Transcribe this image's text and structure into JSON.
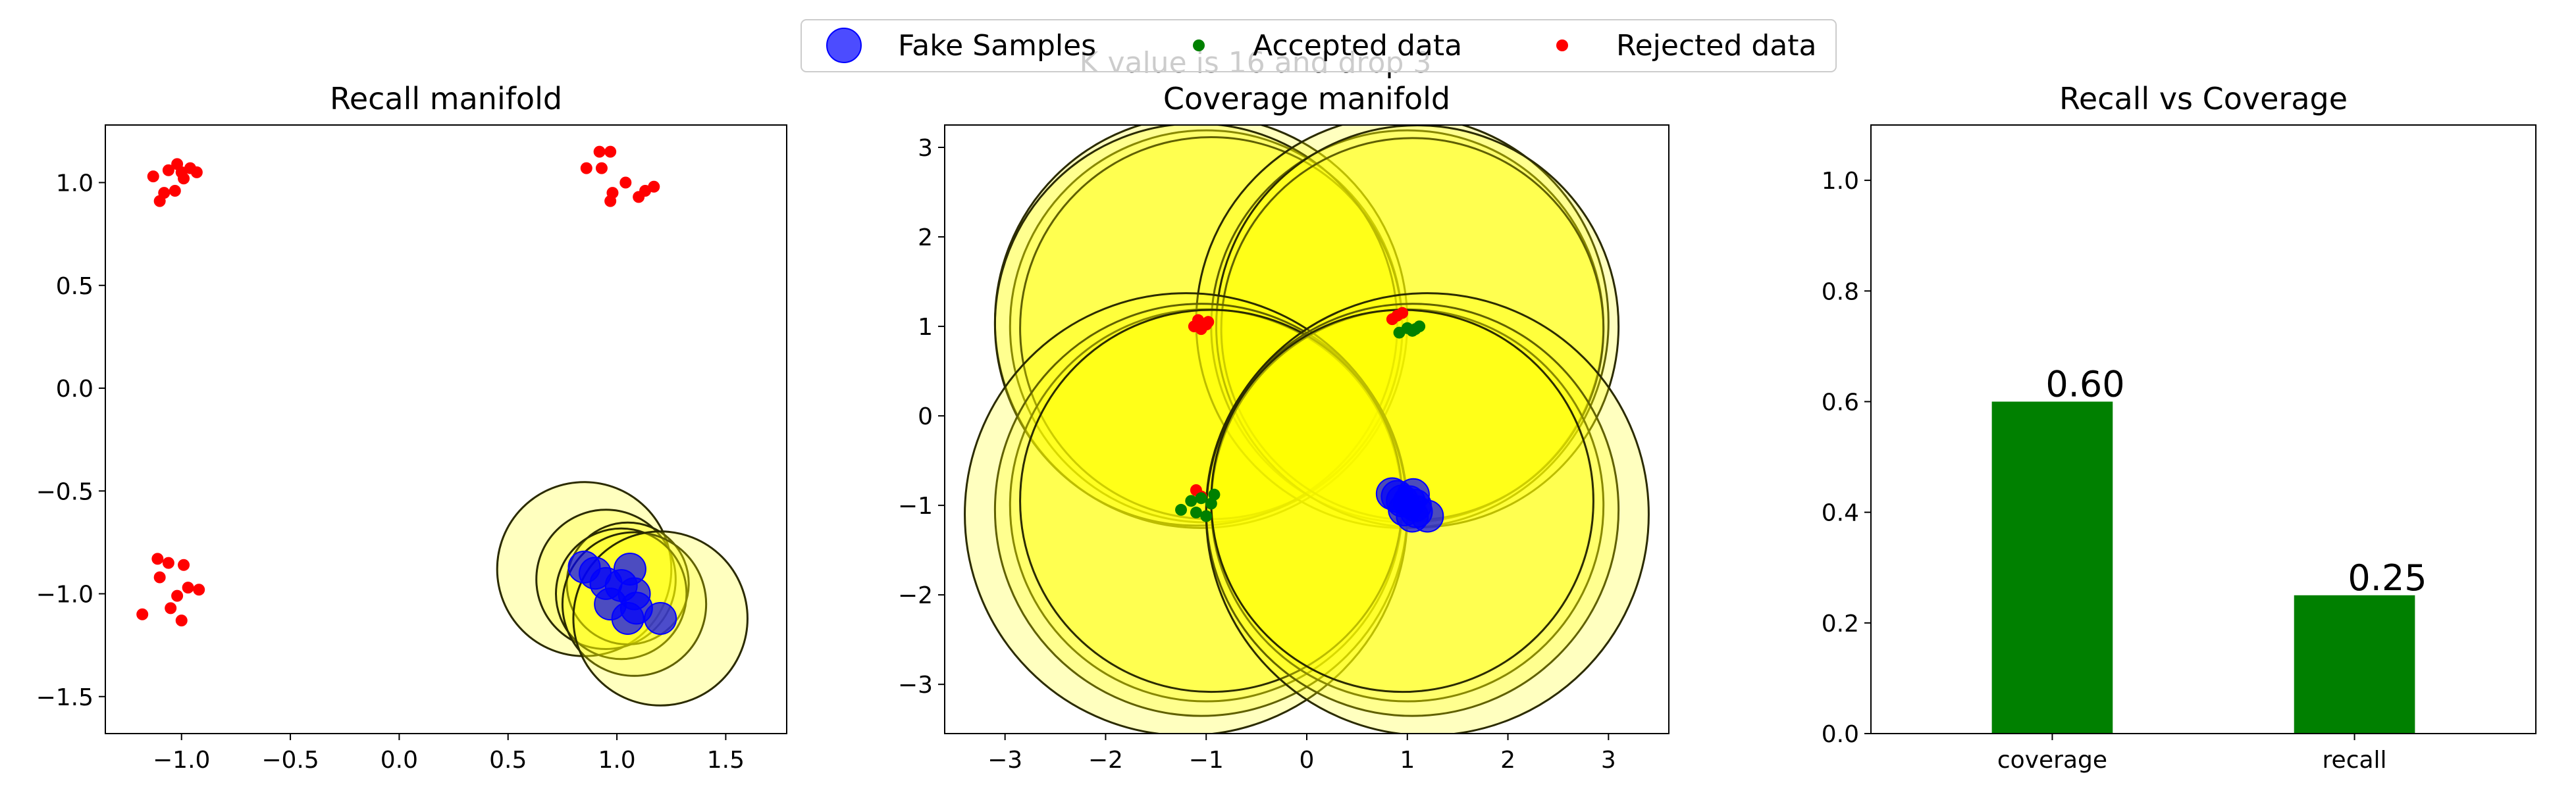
{
  "figure": {
    "suptitle": "K value is 16 and drop 3"
  },
  "legend": {
    "items": [
      {
        "label": "Fake Samples",
        "marker": "large-circle",
        "color": "#0000ff"
      },
      {
        "label": "Accepted data",
        "marker": "dot",
        "color": "#008000"
      },
      {
        "label": "Rejected data",
        "marker": "dot",
        "color": "#ff0000"
      }
    ]
  },
  "colors": {
    "fake": "#0000ff",
    "accepted": "#008000",
    "rejected": "#ff0000",
    "circle_fill": "#ffff00",
    "circle_edge": "#2b2b00",
    "bar": "#008000"
  },
  "chart_data": [
    {
      "type": "scatter",
      "title": "Recall manifold",
      "xlabel": "",
      "ylabel": "",
      "xlim": [
        -1.35,
        1.78
      ],
      "ylim": [
        -1.68,
        1.28
      ],
      "xticks": [
        -1.0,
        -0.5,
        0.0,
        0.5,
        1.0,
        1.5
      ],
      "xtick_labels": [
        "−1.0",
        "−0.5",
        "0.0",
        "0.5",
        "1.0",
        "1.5"
      ],
      "yticks": [
        -1.5,
        -1.0,
        -0.5,
        0.0,
        0.5,
        1.0
      ],
      "ytick_labels": [
        "−1.5",
        "−1.0",
        "−0.5",
        "0.0",
        "0.5",
        "1.0"
      ],
      "rejected": [
        [
          -1.13,
          1.03
        ],
        [
          -1.08,
          0.95
        ],
        [
          -1.03,
          0.96
        ],
        [
          -1.06,
          1.06
        ],
        [
          -1.0,
          1.05
        ],
        [
          -0.96,
          1.07
        ],
        [
          -0.93,
          1.05
        ],
        [
          -1.02,
          1.09
        ],
        [
          -1.1,
          0.91
        ],
        [
          -0.99,
          1.02
        ],
        [
          0.86,
          1.07
        ],
        [
          0.92,
          1.15
        ],
        [
          0.97,
          1.15
        ],
        [
          0.93,
          1.07
        ],
        [
          0.98,
          0.95
        ],
        [
          0.97,
          0.91
        ],
        [
          1.04,
          1.0
        ],
        [
          1.1,
          0.93
        ],
        [
          1.13,
          0.96
        ],
        [
          1.17,
          0.98
        ],
        [
          -1.11,
          -0.83
        ],
        [
          -1.06,
          -0.85
        ],
        [
          -1.1,
          -0.92
        ],
        [
          -0.99,
          -0.86
        ],
        [
          -0.97,
          -0.97
        ],
        [
          -0.92,
          -0.98
        ],
        [
          -1.02,
          -1.01
        ],
        [
          -1.05,
          -1.07
        ],
        [
          -1.0,
          -1.13
        ],
        [
          -1.18,
          -1.1
        ]
      ],
      "fake": [
        [
          0.85,
          -0.87
        ],
        [
          0.9,
          -0.9
        ],
        [
          0.95,
          -0.95
        ],
        [
          1.02,
          -0.96
        ],
        [
          1.06,
          -0.88
        ],
        [
          1.08,
          -1.0
        ],
        [
          0.97,
          -1.05
        ],
        [
          1.05,
          -1.12
        ],
        [
          1.09,
          -1.07
        ],
        [
          1.2,
          -1.12
        ]
      ],
      "manifold_circles": [
        [
          0.85,
          -0.88,
          0.4
        ],
        [
          0.95,
          -0.93,
          0.32
        ],
        [
          1.05,
          -0.95,
          0.28
        ],
        [
          1.02,
          -1.0,
          0.3
        ],
        [
          1.08,
          -1.05,
          0.33
        ],
        [
          1.2,
          -1.12,
          0.4
        ]
      ]
    },
    {
      "type": "scatter",
      "title": "Coverage manifold",
      "xlabel": "",
      "ylabel": "",
      "xlim": [
        -3.6,
        3.6
      ],
      "ylim": [
        -3.55,
        3.25
      ],
      "xticks": [
        -3,
        -2,
        -1,
        0,
        1,
        2,
        3
      ],
      "xtick_labels": [
        "−3",
        "−2",
        "−1",
        "0",
        "1",
        "2",
        "3"
      ],
      "yticks": [
        -3,
        -2,
        -1,
        0,
        1,
        2,
        3
      ],
      "ytick_labels": [
        "−3",
        "−2",
        "−1",
        "0",
        "1",
        "2",
        "3"
      ],
      "accepted": [
        [
          0.92,
          0.93
        ],
        [
          1.0,
          0.98
        ],
        [
          1.08,
          0.97
        ],
        [
          1.12,
          1.0
        ],
        [
          1.05,
          0.95
        ],
        [
          -1.25,
          -1.05
        ],
        [
          -1.1,
          -1.08
        ],
        [
          -0.95,
          -0.98
        ],
        [
          -0.92,
          -0.88
        ],
        [
          -1.05,
          -0.92
        ],
        [
          -1.15,
          -0.95
        ],
        [
          -1.0,
          -1.12
        ]
      ],
      "rejected": [
        [
          -1.12,
          1.0
        ],
        [
          -1.05,
          0.97
        ],
        [
          -0.98,
          1.05
        ],
        [
          -1.08,
          1.07
        ],
        [
          -1.0,
          1.02
        ],
        [
          0.85,
          1.08
        ],
        [
          0.9,
          1.12
        ],
        [
          0.95,
          1.15
        ],
        [
          -1.1,
          -0.83
        ],
        [
          -1.05,
          -0.9
        ]
      ],
      "fake": [
        [
          0.85,
          -0.87
        ],
        [
          0.9,
          -0.9
        ],
        [
          0.95,
          -0.95
        ],
        [
          1.02,
          -0.96
        ],
        [
          1.06,
          -0.88
        ],
        [
          1.08,
          -1.0
        ],
        [
          0.97,
          -1.05
        ],
        [
          1.05,
          -1.12
        ],
        [
          1.09,
          -1.07
        ],
        [
          1.2,
          -1.12
        ]
      ],
      "manifold_circles": [
        [
          -1.0,
          1.0,
          1.95
        ],
        [
          -1.05,
          1.05,
          2.05
        ],
        [
          -0.95,
          0.98,
          1.9
        ],
        [
          -1.1,
          1.02,
          2.0
        ],
        [
          1.0,
          1.0,
          1.95
        ],
        [
          0.95,
          1.05,
          2.05
        ],
        [
          1.05,
          0.97,
          1.9
        ],
        [
          1.1,
          1.0,
          2.0
        ],
        [
          -1.0,
          -1.0,
          1.95
        ],
        [
          -1.05,
          -1.05,
          2.05
        ],
        [
          -1.2,
          -1.1,
          2.2
        ],
        [
          -0.95,
          -0.95,
          1.9
        ],
        [
          1.0,
          -1.0,
          1.95
        ],
        [
          1.05,
          -1.05,
          2.05
        ],
        [
          1.2,
          -1.1,
          2.2
        ],
        [
          0.95,
          -0.95,
          1.9
        ]
      ]
    },
    {
      "type": "bar",
      "title": "Recall vs Coverage",
      "xlabel": "",
      "ylabel": "",
      "categories": [
        "coverage",
        "recall"
      ],
      "values": [
        0.6,
        0.25
      ],
      "data_labels": [
        "0.60",
        "0.25"
      ],
      "xlim": [
        -0.6,
        1.6
      ],
      "ylim": [
        0.0,
        1.1
      ],
      "yticks": [
        0.0,
        0.2,
        0.4,
        0.6,
        0.8,
        1.0
      ],
      "ytick_labels": [
        "0.0",
        "0.2",
        "0.4",
        "0.6",
        "0.8",
        "1.0"
      ],
      "bar_width": 0.4
    }
  ]
}
